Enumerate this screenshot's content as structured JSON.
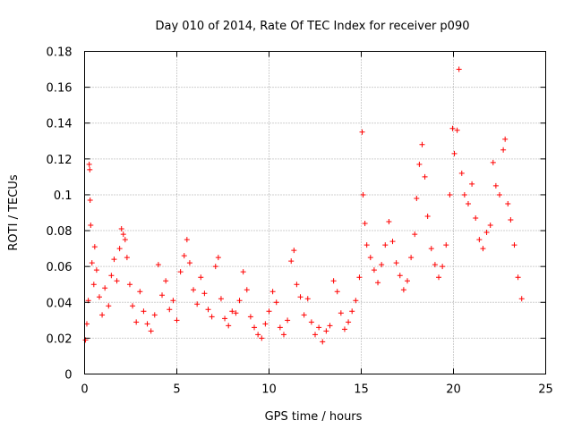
{
  "chart_data": {
    "type": "scatter",
    "title": "Day 010 of 2014, Rate Of TEC Index for receiver p090",
    "xlabel": "GPS time / hours",
    "ylabel": "ROTI / TECUs",
    "xlim": [
      0,
      25
    ],
    "ylim": [
      0,
      0.18
    ],
    "xticks": [
      0,
      5,
      10,
      15,
      20,
      25
    ],
    "xtick_labels": [
      "0",
      "5",
      "10",
      "15",
      "20",
      "25"
    ],
    "yticks": [
      0,
      0.02,
      0.04,
      0.06,
      0.08,
      0.1,
      0.12,
      0.14,
      0.16,
      0.18
    ],
    "ytick_labels": [
      "0",
      "0.02",
      "0.04",
      "0.06",
      "0.08",
      "0.1",
      "0.12",
      "0.14",
      "0.16",
      "0.18"
    ],
    "grid": true,
    "marker": "+",
    "color": "#ff0000",
    "series": [
      {
        "name": "ROTI",
        "points": [
          [
            0.05,
            0.019
          ],
          [
            0.12,
            0.028
          ],
          [
            0.2,
            0.041
          ],
          [
            0.25,
            0.117
          ],
          [
            0.28,
            0.114
          ],
          [
            0.3,
            0.097
          ],
          [
            0.33,
            0.083
          ],
          [
            0.4,
            0.062
          ],
          [
            0.5,
            0.05
          ],
          [
            0.55,
            0.071
          ],
          [
            0.65,
            0.058
          ],
          [
            0.8,
            0.043
          ],
          [
            0.95,
            0.033
          ],
          [
            1.1,
            0.048
          ],
          [
            1.3,
            0.038
          ],
          [
            1.45,
            0.055
          ],
          [
            1.6,
            0.064
          ],
          [
            1.75,
            0.052
          ],
          [
            1.9,
            0.07
          ],
          [
            2.0,
            0.081
          ],
          [
            2.1,
            0.078
          ],
          [
            2.2,
            0.075
          ],
          [
            2.3,
            0.065
          ],
          [
            2.45,
            0.05
          ],
          [
            2.6,
            0.038
          ],
          [
            2.8,
            0.029
          ],
          [
            3.0,
            0.046
          ],
          [
            3.2,
            0.035
          ],
          [
            3.4,
            0.028
          ],
          [
            3.6,
            0.024
          ],
          [
            3.8,
            0.033
          ],
          [
            4.0,
            0.061
          ],
          [
            4.2,
            0.044
          ],
          [
            4.4,
            0.052
          ],
          [
            4.6,
            0.036
          ],
          [
            4.8,
            0.041
          ],
          [
            5.0,
            0.03
          ],
          [
            5.2,
            0.057
          ],
          [
            5.4,
            0.066
          ],
          [
            5.55,
            0.075
          ],
          [
            5.7,
            0.062
          ],
          [
            5.9,
            0.047
          ],
          [
            6.1,
            0.039
          ],
          [
            6.3,
            0.054
          ],
          [
            6.5,
            0.045
          ],
          [
            6.7,
            0.036
          ],
          [
            6.9,
            0.032
          ],
          [
            7.1,
            0.06
          ],
          [
            7.25,
            0.065
          ],
          [
            7.4,
            0.042
          ],
          [
            7.6,
            0.031
          ],
          [
            7.8,
            0.027
          ],
          [
            8.0,
            0.035
          ],
          [
            8.2,
            0.034
          ],
          [
            8.4,
            0.041
          ],
          [
            8.6,
            0.057
          ],
          [
            8.8,
            0.047
          ],
          [
            9.0,
            0.032
          ],
          [
            9.2,
            0.026
          ],
          [
            9.4,
            0.022
          ],
          [
            9.6,
            0.02
          ],
          [
            9.8,
            0.028
          ],
          [
            10.0,
            0.035
          ],
          [
            10.2,
            0.046
          ],
          [
            10.4,
            0.04
          ],
          [
            10.6,
            0.026
          ],
          [
            10.8,
            0.022
          ],
          [
            11.0,
            0.03
          ],
          [
            11.2,
            0.063
          ],
          [
            11.35,
            0.069
          ],
          [
            11.5,
            0.05
          ],
          [
            11.7,
            0.043
          ],
          [
            11.9,
            0.033
          ],
          [
            12.1,
            0.042
          ],
          [
            12.3,
            0.029
          ],
          [
            12.5,
            0.022
          ],
          [
            12.7,
            0.026
          ],
          [
            12.9,
            0.018
          ],
          [
            13.1,
            0.024
          ],
          [
            13.3,
            0.027
          ],
          [
            13.5,
            0.052
          ],
          [
            13.7,
            0.046
          ],
          [
            13.9,
            0.034
          ],
          [
            14.1,
            0.025
          ],
          [
            14.3,
            0.029
          ],
          [
            14.5,
            0.035
          ],
          [
            14.7,
            0.041
          ],
          [
            14.9,
            0.054
          ],
          [
            15.05,
            0.135
          ],
          [
            15.1,
            0.1
          ],
          [
            15.2,
            0.084
          ],
          [
            15.3,
            0.072
          ],
          [
            15.5,
            0.065
          ],
          [
            15.7,
            0.058
          ],
          [
            15.9,
            0.051
          ],
          [
            16.1,
            0.061
          ],
          [
            16.3,
            0.072
          ],
          [
            16.5,
            0.085
          ],
          [
            16.7,
            0.074
          ],
          [
            16.9,
            0.062
          ],
          [
            17.1,
            0.055
          ],
          [
            17.3,
            0.047
          ],
          [
            17.5,
            0.052
          ],
          [
            17.7,
            0.065
          ],
          [
            17.9,
            0.078
          ],
          [
            18.0,
            0.098
          ],
          [
            18.15,
            0.117
          ],
          [
            18.3,
            0.128
          ],
          [
            18.45,
            0.11
          ],
          [
            18.6,
            0.088
          ],
          [
            18.8,
            0.07
          ],
          [
            19.0,
            0.061
          ],
          [
            19.2,
            0.054
          ],
          [
            19.4,
            0.06
          ],
          [
            19.6,
            0.072
          ],
          [
            19.8,
            0.1
          ],
          [
            19.95,
            0.137
          ],
          [
            20.05,
            0.123
          ],
          [
            20.2,
            0.136
          ],
          [
            20.3,
            0.17
          ],
          [
            20.45,
            0.112
          ],
          [
            20.6,
            0.1
          ],
          [
            20.8,
            0.095
          ],
          [
            21.0,
            0.106
          ],
          [
            21.2,
            0.087
          ],
          [
            21.4,
            0.075
          ],
          [
            21.6,
            0.07
          ],
          [
            21.8,
            0.079
          ],
          [
            22.0,
            0.083
          ],
          [
            22.15,
            0.118
          ],
          [
            22.3,
            0.105
          ],
          [
            22.5,
            0.1
          ],
          [
            22.7,
            0.125
          ],
          [
            22.8,
            0.131
          ],
          [
            22.95,
            0.095
          ],
          [
            23.1,
            0.086
          ],
          [
            23.3,
            0.072
          ],
          [
            23.5,
            0.054
          ],
          [
            23.7,
            0.042
          ]
        ]
      }
    ]
  }
}
